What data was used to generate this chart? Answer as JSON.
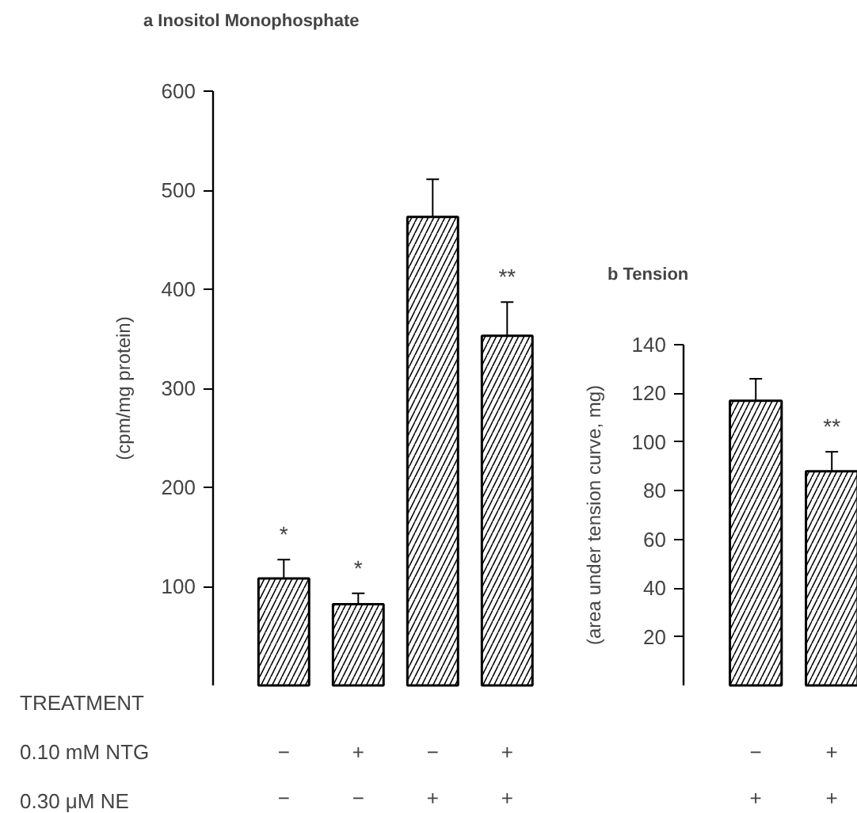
{
  "chart_data": [
    {
      "type": "bar",
      "title": "a    Inositol Monophosphate",
      "ylabel": "(cpm/mg protein)",
      "categories": [
        "−\n−",
        "+\n−",
        "−\n+",
        "+\n+"
      ],
      "values": [
        108,
        82,
        473,
        353
      ],
      "errors": [
        19,
        11,
        38,
        34
      ],
      "color": "#ffffff",
      "value_labels": [
        "*",
        "*",
        null,
        "**"
      ],
      "ylim": [
        0,
        600
      ],
      "yticks": [
        100,
        200,
        300,
        400,
        500,
        600
      ],
      "annotations": [
        "TREATMENT",
        "0.10 mM NTG",
        "0.30 μM NE"
      ],
      "grid": false
    },
    {
      "type": "bar",
      "title": "b    Tension",
      "ylabel": "(area under tension curve, mg)",
      "categories": [
        "−\n+",
        "+\n+"
      ],
      "values": [
        117,
        88
      ],
      "errors": [
        9,
        8
      ],
      "color": "#ffffff",
      "value_labels": [
        null,
        "**"
      ],
      "ylim": [
        0,
        140
      ],
      "yticks": [
        20,
        40,
        60,
        80,
        100,
        120,
        140
      ],
      "grid": false
    }
  ]
}
